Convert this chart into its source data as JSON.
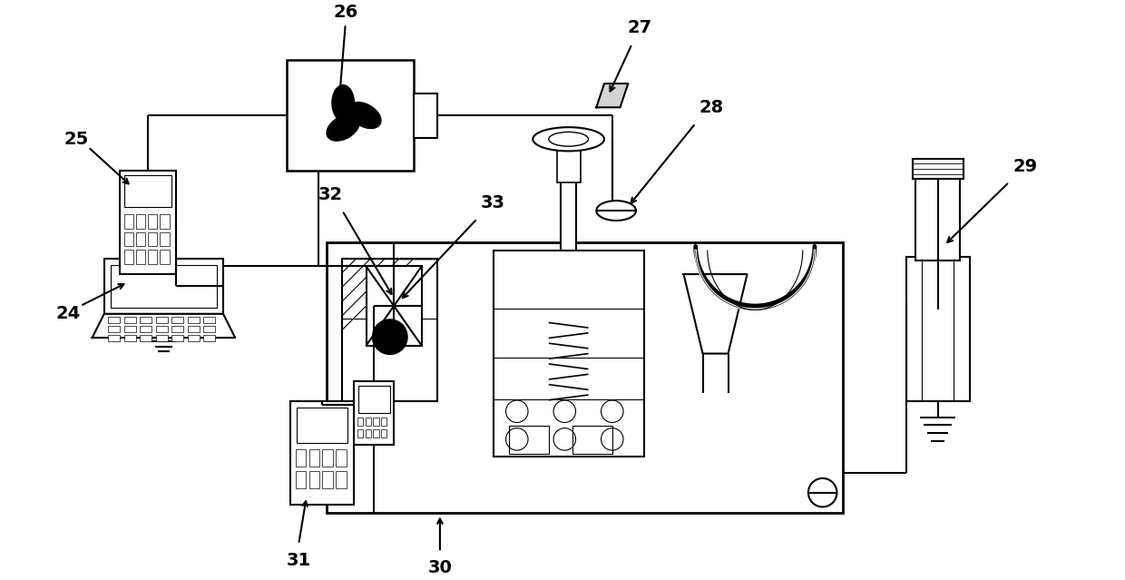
{
  "bg_color": "#ffffff",
  "line_color": "#000000",
  "lw": 1.5
}
